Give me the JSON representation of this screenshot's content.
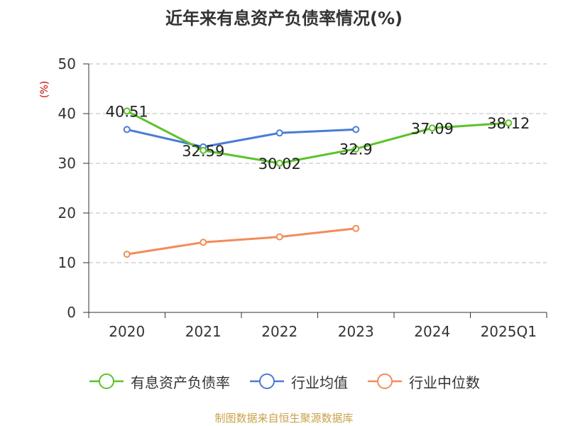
{
  "title": "近年来有息资产负债率情况(%)",
  "source": "制图数据来自恒生聚源数据库",
  "chart_data": {
    "type": "line",
    "title": "近年来有息资产负债率情况(%)",
    "ylabel": "(%)",
    "ylim": [
      0,
      50
    ],
    "yticks": [
      0,
      10,
      20,
      30,
      40,
      50
    ],
    "grid": true,
    "legend_position": "bottom",
    "categories": [
      "2020",
      "2021",
      "2022",
      "2023",
      "2024",
      "2025Q1"
    ],
    "series": [
      {
        "name": "有息资产负债率",
        "color": "#5bc22a",
        "values": [
          40.51,
          32.59,
          30.02,
          32.9,
          37.09,
          38.12
        ],
        "labels": [
          "40.51",
          "32.59",
          "30.02",
          "32.9",
          "37.09",
          "38.12"
        ]
      },
      {
        "name": "行业均值",
        "color": "#4a7bd6",
        "values": [
          36.8,
          33.3,
          36.1,
          36.8,
          null,
          null
        ]
      },
      {
        "name": "行业中位数",
        "color": "#f28c5a",
        "values": [
          11.7,
          14.1,
          15.2,
          16.9,
          null,
          null
        ]
      }
    ]
  }
}
